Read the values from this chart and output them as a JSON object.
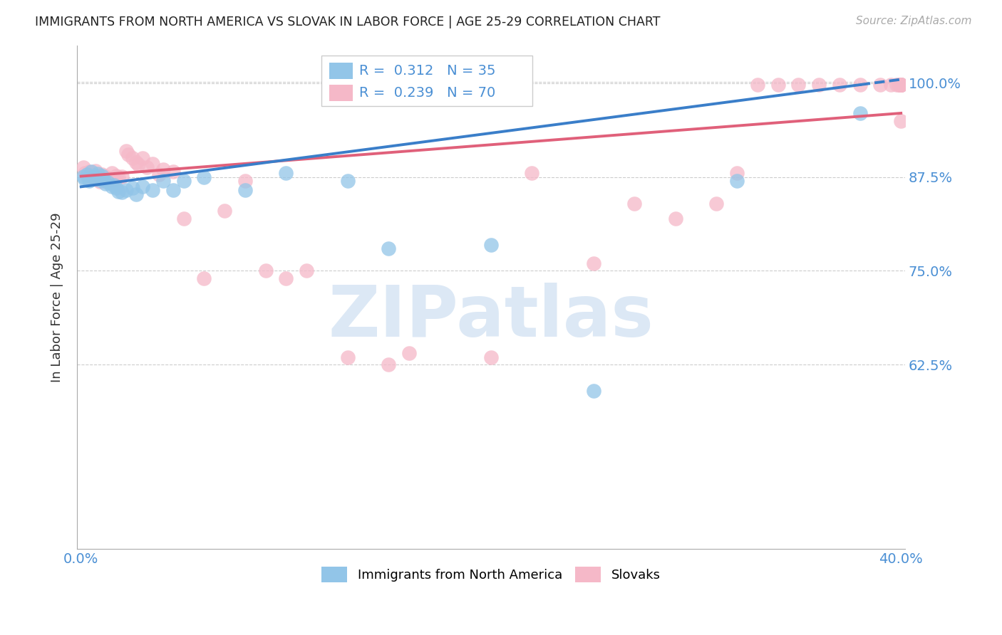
{
  "title": "IMMIGRANTS FROM NORTH AMERICA VS SLOVAK IN LABOR FORCE | AGE 25-29 CORRELATION CHART",
  "source": "Source: ZipAtlas.com",
  "ylabel": "In Labor Force | Age 25-29",
  "xlim": [
    -0.002,
    0.402
  ],
  "ylim": [
    0.38,
    1.05
  ],
  "xticks": [
    0.0,
    0.1,
    0.2,
    0.3,
    0.4
  ],
  "xticklabels": [
    "0.0%",
    "",
    "",
    "",
    "40.0%"
  ],
  "yticks": [
    0.625,
    0.75,
    0.875,
    1.0
  ],
  "yticklabels": [
    "62.5%",
    "75.0%",
    "87.5%",
    "100.0%"
  ],
  "legend_R_blue": "0.312",
  "legend_N_blue": "35",
  "legend_R_pink": "0.239",
  "legend_N_pink": "70",
  "blue_color": "#92c5e8",
  "pink_color": "#f5b8c8",
  "blue_line_color": "#3a7ec9",
  "pink_line_color": "#e0607a",
  "grid_color": "#cccccc",
  "watermark_color": "#dce8f5",
  "blue_scatter_x": [
    0.001,
    0.002,
    0.003,
    0.004,
    0.005,
    0.006,
    0.007,
    0.008,
    0.009,
    0.01,
    0.011,
    0.012,
    0.013,
    0.015,
    0.016,
    0.017,
    0.018,
    0.02,
    0.022,
    0.025,
    0.027,
    0.03,
    0.035,
    0.04,
    0.045,
    0.05,
    0.06,
    0.08,
    0.1,
    0.13,
    0.15,
    0.2,
    0.25,
    0.32,
    0.38
  ],
  "blue_scatter_y": [
    0.876,
    0.872,
    0.878,
    0.87,
    0.882,
    0.875,
    0.876,
    0.879,
    0.871,
    0.877,
    0.872,
    0.866,
    0.868,
    0.862,
    0.864,
    0.86,
    0.856,
    0.855,
    0.858,
    0.86,
    0.852,
    0.862,
    0.858,
    0.87,
    0.858,
    0.87,
    0.875,
    0.858,
    0.88,
    0.87,
    0.78,
    0.785,
    0.59,
    0.87,
    0.96
  ],
  "pink_scatter_x": [
    0.001,
    0.002,
    0.003,
    0.004,
    0.005,
    0.006,
    0.007,
    0.008,
    0.009,
    0.01,
    0.011,
    0.012,
    0.013,
    0.014,
    0.015,
    0.016,
    0.017,
    0.018,
    0.02,
    0.022,
    0.023,
    0.025,
    0.027,
    0.028,
    0.03,
    0.032,
    0.035,
    0.038,
    0.04,
    0.045,
    0.05,
    0.06,
    0.07,
    0.08,
    0.09,
    0.1,
    0.11,
    0.13,
    0.15,
    0.16,
    0.2,
    0.22,
    0.25,
    0.27,
    0.29,
    0.31,
    0.32,
    0.33,
    0.34,
    0.35,
    0.36,
    0.37,
    0.38,
    0.39,
    0.395,
    0.398,
    0.399,
    0.4,
    0.4,
    0.4,
    0.4,
    0.4,
    0.4,
    0.4,
    0.4,
    0.4,
    0.4,
    0.4,
    0.4,
    0.4
  ],
  "pink_scatter_y": [
    0.888,
    0.88,
    0.876,
    0.882,
    0.877,
    0.873,
    0.883,
    0.876,
    0.869,
    0.878,
    0.872,
    0.876,
    0.874,
    0.868,
    0.88,
    0.872,
    0.877,
    0.875,
    0.876,
    0.91,
    0.905,
    0.9,
    0.895,
    0.892,
    0.9,
    0.888,
    0.893,
    0.878,
    0.885,
    0.882,
    0.82,
    0.74,
    0.83,
    0.87,
    0.75,
    0.74,
    0.75,
    0.635,
    0.625,
    0.64,
    0.635,
    0.88,
    0.76,
    0.84,
    0.82,
    0.84,
    0.88,
    0.998,
    0.998,
    0.998,
    0.998,
    0.998,
    0.998,
    0.998,
    0.998,
    0.998,
    0.998,
    0.998,
    0.998,
    0.998,
    0.998,
    0.998,
    0.998,
    0.998,
    0.998,
    0.998,
    0.998,
    0.998,
    0.998,
    0.95
  ]
}
